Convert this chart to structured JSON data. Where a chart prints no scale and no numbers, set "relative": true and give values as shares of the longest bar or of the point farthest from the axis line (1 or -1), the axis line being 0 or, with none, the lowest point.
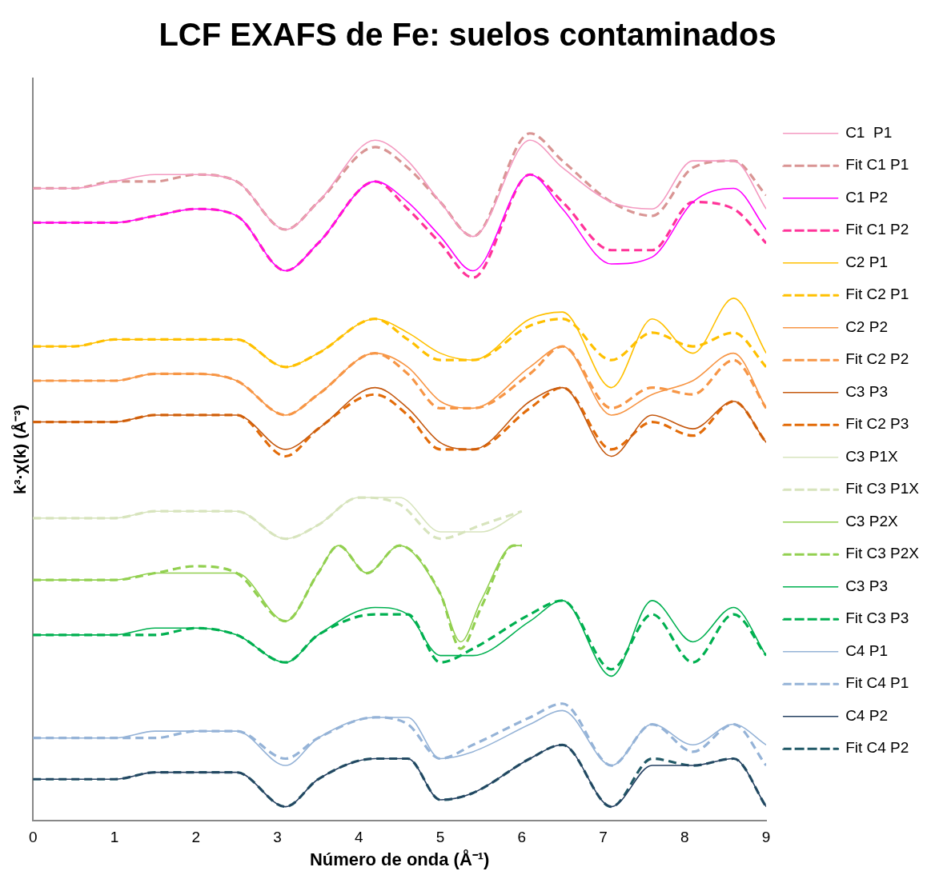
{
  "chart_data": {
    "type": "line",
    "title": "LCF EXAFS de Fe: suelos contaminados",
    "xlabel": "Número de onda (Å⁻¹)",
    "ylabel": "k³·χ(k) (Å⁻³)",
    "relative": true,
    "xlim": [
      0,
      9
    ],
    "xticks": [
      0,
      1,
      2,
      3,
      4,
      5,
      6,
      7,
      8,
      9
    ],
    "grid": false,
    "legend": "right",
    "marker": "none",
    "x": [
      0,
      0.5,
      1,
      1.5,
      2,
      2.5,
      3.1,
      3.5,
      4.2,
      4.6,
      5,
      5.4,
      6.1,
      6.5,
      7.1,
      7.6,
      8.1,
      8.6,
      9
    ],
    "series": [
      {
        "name": "C1  P1",
        "color": "#f49ac1",
        "line_style": "solid",
        "values": [
          0.92,
          0.92,
          0.93,
          0.94,
          0.94,
          0.93,
          0.86,
          0.9,
          0.99,
          0.96,
          0.9,
          0.85,
          0.99,
          0.95,
          0.9,
          0.89,
          0.96,
          0.96,
          0.89
        ]
      },
      {
        "name": "Fit C1 P1",
        "color": "#d99594",
        "line_style": "dashed",
        "values": [
          0.92,
          0.92,
          0.93,
          0.93,
          0.94,
          0.93,
          0.86,
          0.9,
          0.98,
          0.95,
          0.9,
          0.85,
          1,
          0.96,
          0.9,
          0.88,
          0.95,
          0.96,
          0.91
        ]
      },
      {
        "name": "C1 P2",
        "color": "#ff00ff",
        "line_style": "solid",
        "values": [
          0.87,
          0.87,
          0.87,
          0.88,
          0.89,
          0.88,
          0.8,
          0.84,
          0.93,
          0.9,
          0.85,
          0.8,
          0.94,
          0.89,
          0.81,
          0.82,
          0.9,
          0.92,
          0.86
        ]
      },
      {
        "name": "Fit C1 P2",
        "color": "#ff3399",
        "line_style": "dashed",
        "values": [
          0.87,
          0.87,
          0.87,
          0.88,
          0.89,
          0.88,
          0.8,
          0.84,
          0.93,
          0.89,
          0.84,
          0.79,
          0.94,
          0.9,
          0.83,
          0.83,
          0.9,
          0.89,
          0.84
        ]
      },
      {
        "name": "C2 P1",
        "color": "#ffc000",
        "line_style": "solid",
        "values": [
          0.69,
          0.69,
          0.7,
          0.7,
          0.7,
          0.7,
          0.66,
          0.68,
          0.73,
          0.71,
          0.68,
          0.67,
          0.73,
          0.74,
          0.63,
          0.73,
          0.68,
          0.76,
          0.68
        ]
      },
      {
        "name": "Fit C2 P1",
        "color": "#ffc000",
        "line_style": "dashed",
        "values": [
          0.69,
          0.69,
          0.7,
          0.7,
          0.7,
          0.7,
          0.66,
          0.68,
          0.73,
          0.7,
          0.67,
          0.67,
          0.72,
          0.73,
          0.67,
          0.71,
          0.69,
          0.71,
          0.66
        ]
      },
      {
        "name": "C2 P2",
        "color": "#f79646",
        "line_style": "solid",
        "values": [
          0.64,
          0.64,
          0.64,
          0.65,
          0.65,
          0.64,
          0.59,
          0.62,
          0.68,
          0.66,
          0.61,
          0.6,
          0.66,
          0.69,
          0.59,
          0.62,
          0.64,
          0.68,
          0.6
        ]
      },
      {
        "name": "Fit C2 P2",
        "color": "#f79646",
        "line_style": "dashed",
        "values": [
          0.64,
          0.64,
          0.64,
          0.65,
          0.65,
          0.64,
          0.59,
          0.62,
          0.68,
          0.65,
          0.6,
          0.6,
          0.65,
          0.69,
          0.6,
          0.63,
          0.62,
          0.67,
          0.6
        ]
      },
      {
        "name": "C3 P3",
        "color": "#c55a11",
        "line_style": "solid",
        "values": [
          0.58,
          0.58,
          0.58,
          0.59,
          0.59,
          0.59,
          0.54,
          0.57,
          0.63,
          0.6,
          0.55,
          0.54,
          0.61,
          0.63,
          0.53,
          0.59,
          0.57,
          0.61,
          0.55
        ]
      },
      {
        "name": "Fit C2 P3",
        "color": "#e36c09",
        "line_style": "dashed",
        "values": [
          0.58,
          0.58,
          0.58,
          0.59,
          0.59,
          0.59,
          0.53,
          0.57,
          0.62,
          0.59,
          0.54,
          0.54,
          0.6,
          0.63,
          0.54,
          0.58,
          0.56,
          0.61,
          0.55
        ]
      },
      {
        "name": "C3 P1X",
        "color": "#d7e4bd",
        "line_style": "solid",
        "x": [
          0,
          0.5,
          1,
          1.5,
          2,
          2.5,
          3.1,
          3.5,
          4,
          4.5,
          5,
          5.5,
          6
        ],
        "values": [
          0.44,
          0.44,
          0.44,
          0.45,
          0.45,
          0.45,
          0.41,
          0.43,
          0.47,
          0.47,
          0.42,
          0.42,
          0.45
        ]
      },
      {
        "name": "Fit C3 P1X",
        "color": "#d7e4bd",
        "line_style": "dashed",
        "x": [
          0,
          0.5,
          1,
          1.5,
          2,
          2.5,
          3.1,
          3.5,
          4,
          4.5,
          5,
          5.5,
          6
        ],
        "values": [
          0.44,
          0.44,
          0.44,
          0.45,
          0.45,
          0.45,
          0.41,
          0.43,
          0.47,
          0.46,
          0.41,
          0.43,
          0.45
        ]
      },
      {
        "name": "C3 P2X",
        "color": "#92d050",
        "line_style": "solid",
        "x": [
          0,
          0.5,
          1,
          1.5,
          2,
          2.5,
          3.1,
          3.5,
          3.75,
          4.1,
          4.5,
          5,
          5.25,
          5.5,
          5.9,
          6
        ],
        "values": [
          0.35,
          0.35,
          0.35,
          0.36,
          0.36,
          0.36,
          0.29,
          0.36,
          0.4,
          0.36,
          0.4,
          0.33,
          0.26,
          0.32,
          0.4,
          0.4
        ]
      },
      {
        "name": "Fit C3 P2X",
        "color": "#92d050",
        "line_style": "dashed",
        "x": [
          0,
          0.5,
          1,
          1.5,
          2,
          2.5,
          3.1,
          3.5,
          3.75,
          4.1,
          4.5,
          5,
          5.25,
          5.5,
          5.9,
          6
        ],
        "values": [
          0.35,
          0.35,
          0.35,
          0.36,
          0.37,
          0.36,
          0.29,
          0.36,
          0.4,
          0.36,
          0.4,
          0.33,
          0.25,
          0.31,
          0.4,
          0.4
        ]
      },
      {
        "name": "C3 P3",
        "color": "#00b050",
        "line_style": "solid",
        "values": [
          0.27,
          0.27,
          0.27,
          0.28,
          0.28,
          0.27,
          0.23,
          0.27,
          0.31,
          0.3,
          0.24,
          0.24,
          0.29,
          0.32,
          0.21,
          0.32,
          0.26,
          0.31,
          0.24
        ]
      },
      {
        "name": "Fit C3 P3",
        "color": "#00b050",
        "line_style": "dashed",
        "values": [
          0.27,
          0.27,
          0.27,
          0.27,
          0.28,
          0.27,
          0.23,
          0.27,
          0.3,
          0.3,
          0.23,
          0.25,
          0.3,
          0.32,
          0.22,
          0.3,
          0.23,
          0.3,
          0.24
        ]
      },
      {
        "name": "C4 P1",
        "color": "#95b3d7",
        "line_style": "solid",
        "values": [
          0.12,
          0.12,
          0.12,
          0.13,
          0.13,
          0.13,
          0.08,
          0.12,
          0.15,
          0.15,
          0.09,
          0.1,
          0.14,
          0.16,
          0.08,
          0.14,
          0.11,
          0.14,
          0.11
        ]
      },
      {
        "name": "Fit C4 P1",
        "color": "#95b3d7",
        "line_style": "dashed",
        "values": [
          0.12,
          0.12,
          0.12,
          0.12,
          0.13,
          0.13,
          0.09,
          0.12,
          0.15,
          0.14,
          0.09,
          0.11,
          0.15,
          0.17,
          0.08,
          0.14,
          0.1,
          0.14,
          0.08
        ]
      },
      {
        "name": "C4 P2",
        "color": "#254061",
        "line_style": "solid",
        "values": [
          0.06,
          0.06,
          0.06,
          0.07,
          0.07,
          0.07,
          0.02,
          0.06,
          0.09,
          0.09,
          0.03,
          0.04,
          0.09,
          0.11,
          0.02,
          0.08,
          0.08,
          0.09,
          0.02
        ]
      },
      {
        "name": "Fit C4 P2",
        "color": "#215967",
        "line_style": "dashed",
        "values": [
          0.06,
          0.06,
          0.06,
          0.07,
          0.07,
          0.07,
          0.02,
          0.06,
          0.09,
          0.09,
          0.03,
          0.04,
          0.09,
          0.11,
          0.02,
          0.09,
          0.08,
          0.09,
          0.02
        ]
      }
    ]
  }
}
